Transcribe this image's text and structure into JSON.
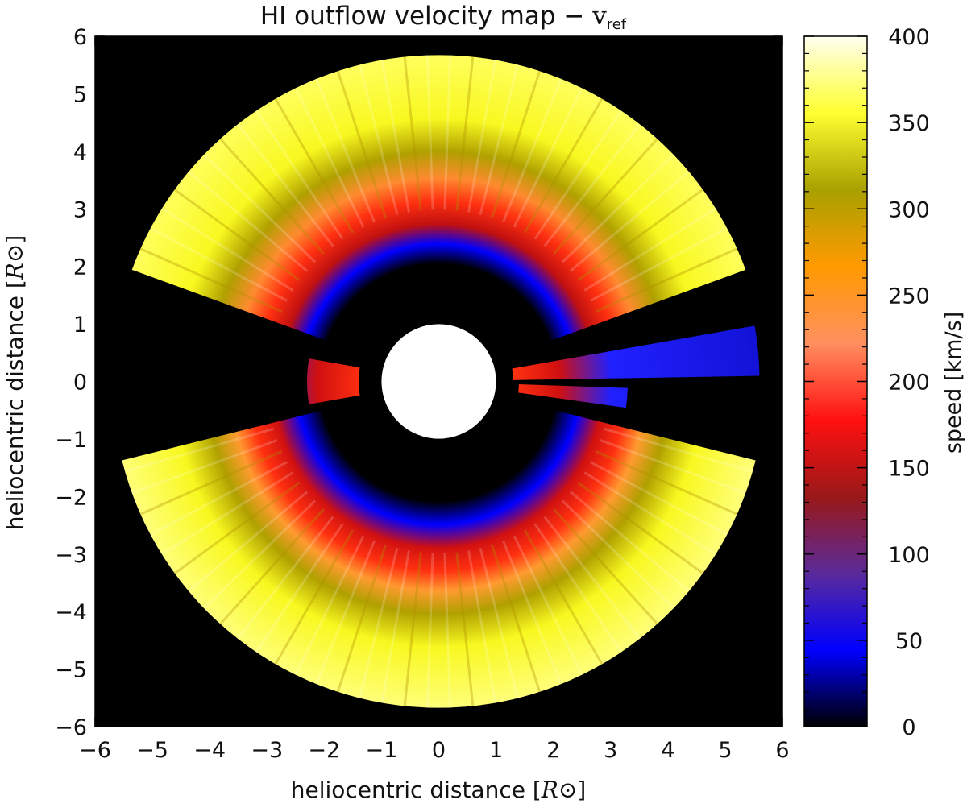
{
  "chart_data": {
    "type": "heatmap",
    "title": "HI outflow velocity map − ",
    "title_symbol": "v",
    "title_subscript": "ref",
    "xlabel": "heliocentric distance",
    "ylabel": "heliocentric distance",
    "axis_unit": "R⊙",
    "xlim": [
      -6,
      6
    ],
    "ylim": [
      -6,
      6
    ],
    "x_ticks": [
      "−6",
      "−5",
      "−4",
      "−3",
      "−2",
      "−1",
      "0",
      "1",
      "2",
      "3",
      "4",
      "5",
      "6"
    ],
    "y_ticks": [
      "6",
      "5",
      "4",
      "3",
      "2",
      "1",
      "0",
      "−1",
      "−2",
      "−3",
      "−4",
      "−5",
      "−6"
    ],
    "colorbar": {
      "label": "speed [km/s]",
      "range": [
        0,
        400
      ],
      "ticks": [
        "0",
        "50",
        "100",
        "150",
        "200",
        "250",
        "300",
        "350",
        "400"
      ],
      "colors": [
        "#000000",
        "#0000ff",
        "#5a2a9a",
        "#9a1818",
        "#ff1010",
        "#ff9060",
        "#ff9a00",
        "#a8a000",
        "#ffff30",
        "#fffff0"
      ]
    },
    "occulter_radius": 1.0,
    "field_of_view_radius": 5.7,
    "sectors": [
      {
        "from_deg": 20,
        "to_deg": 160,
        "inner_radius": 1.8,
        "outer_speed": 350
      },
      {
        "from_deg": 194,
        "to_deg": 346,
        "inner_radius": 1.9,
        "outer_speed": 360
      },
      {
        "from_deg": 1,
        "to_deg": 10,
        "inner_radius": 1.3,
        "outer_speed": 180
      },
      {
        "from_deg": -8,
        "to_deg": -2,
        "inner_radius": 1.4,
        "outer_speed": 200
      },
      {
        "from_deg": 170,
        "to_deg": 190,
        "inner_radius": 1.4,
        "outer_speed": 190
      }
    ]
  }
}
